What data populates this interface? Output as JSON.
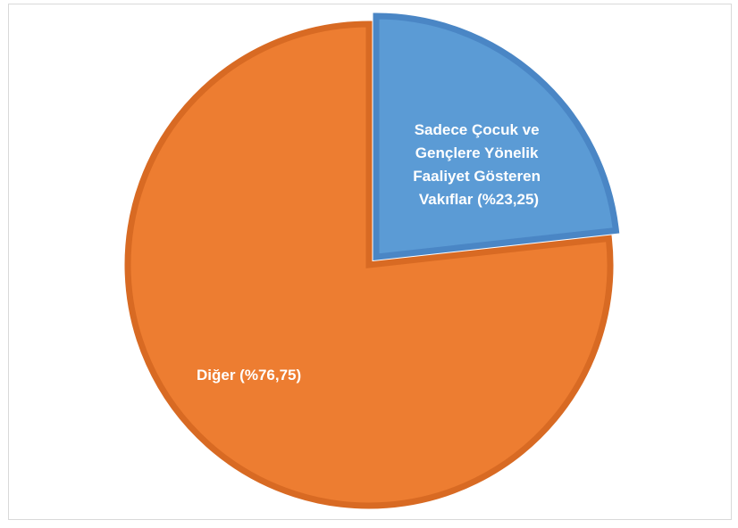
{
  "chart_data": {
    "type": "pie",
    "title": "",
    "slices": [
      {
        "label": "Sadece Çocuk ve Gençlere Yönelik Faaliyet Gösteren Vakıflar (%23,25)",
        "label_lines": [
          "Sadece Çocuk ve",
          "Gençlere Yönelik",
          "Faaliyet Gösteren",
          "Vakıflar (%23,25)"
        ],
        "value": 23.25,
        "color": "#5b9bd5",
        "border_color": "#4a86c5"
      },
      {
        "label": "Diğer (%76,75)",
        "label_lines": [
          "Diğer (%76,75)"
        ],
        "value": 76.75,
        "color": "#ed7d31",
        "border_color": "#d86a23"
      }
    ],
    "legend": "none",
    "start_angle": "12 o'clock, clockwise"
  }
}
